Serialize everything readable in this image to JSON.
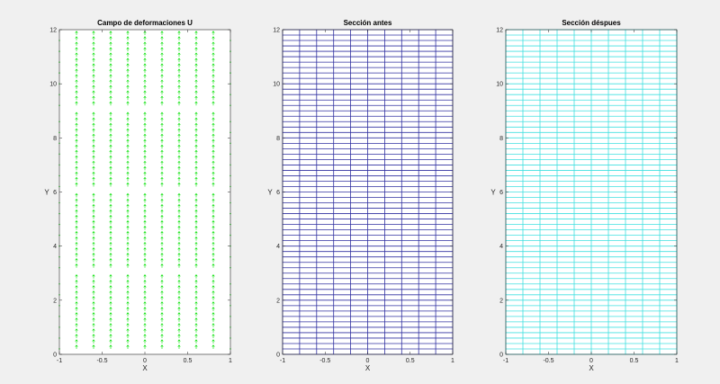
{
  "figure": {
    "background": "#f0f0f0",
    "axes_background": "#ffffff"
  },
  "chart_data": [
    {
      "type": "quiver",
      "title": "Campo de deformaciones U",
      "xlabel": "X",
      "ylabel": "Y",
      "xlim": [
        -1,
        1
      ],
      "ylim": [
        0,
        12
      ],
      "xticks": [
        -1,
        -0.5,
        0,
        0.5,
        1
      ],
      "yticks": [
        0,
        2,
        4,
        6,
        8,
        10,
        12
      ],
      "grid": false,
      "color": "#00e000",
      "columns_x": [
        -0.8,
        -0.6,
        -0.4,
        -0.2,
        0,
        0.2,
        0.4,
        0.6,
        0.8
      ],
      "edge_columns_x": [
        -1,
        1
      ],
      "band_ranges_y": [
        [
          0.2,
          2.8
        ],
        [
          3.2,
          5.8
        ],
        [
          6.2,
          8.8
        ],
        [
          9.2,
          11.8
        ]
      ],
      "arrow_spacing_y": 0.2,
      "arrow_direction": "up"
    },
    {
      "type": "mesh",
      "title": "Sección antes",
      "xlabel": "X",
      "ylabel": "Y",
      "xlim": [
        -1,
        1
      ],
      "ylim": [
        0,
        12
      ],
      "xticks": [
        -1,
        -0.5,
        0,
        0.5,
        1
      ],
      "yticks": [
        0,
        2,
        4,
        6,
        8,
        10,
        12
      ],
      "grid": false,
      "color": "#3030a0",
      "vertical_lines_x": [
        -1,
        -0.8,
        -0.6,
        -0.4,
        -0.2,
        0,
        0.2,
        0.4,
        0.6,
        0.8,
        1
      ],
      "horizontal_line_spacing_y": 0.2
    },
    {
      "type": "mesh",
      "title": "Sección déspues",
      "xlabel": "X",
      "ylabel": "Y",
      "xlim": [
        -1,
        1
      ],
      "ylim": [
        0,
        12
      ],
      "xticks": [
        -1,
        -0.5,
        0,
        0.5,
        1
      ],
      "yticks": [
        0,
        2,
        4,
        6,
        8,
        10,
        12
      ],
      "grid": false,
      "color": "#40e0e0",
      "vertical_lines_x": [
        -1,
        -0.8,
        -0.6,
        -0.4,
        -0.2,
        0,
        0.2,
        0.4,
        0.6,
        0.8,
        1
      ],
      "horizontal_line_spacing_y": 0.2
    }
  ]
}
